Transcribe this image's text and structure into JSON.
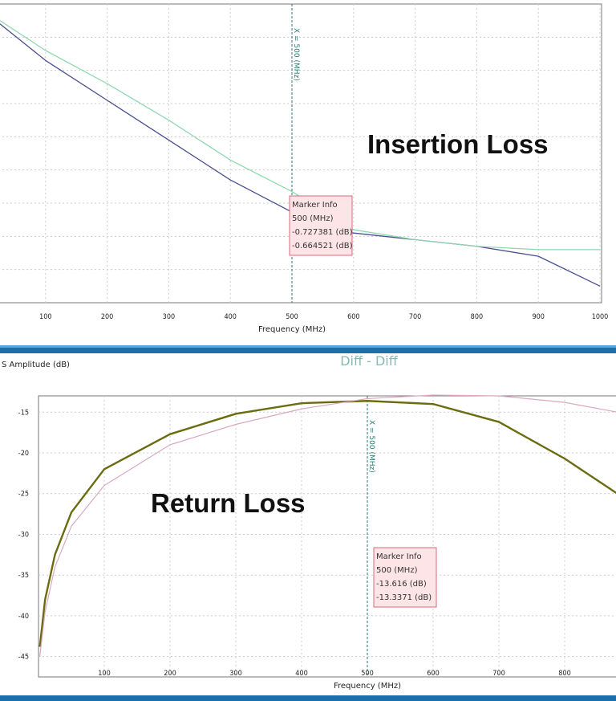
{
  "chart_data": [
    {
      "type": "line",
      "annotation": "Insertion Loss",
      "xlabel": "Frequency (MHz)",
      "xticks": [
        "100",
        "200",
        "300",
        "400",
        "500",
        "600",
        "700",
        "800",
        "900",
        "1000"
      ],
      "xlim": [
        26,
        1000
      ],
      "ylim": [
        -1.0,
        -0.1
      ],
      "grid": true,
      "marker": {
        "label": "X = 500 (MHz)",
        "x": 500,
        "info_title": "Marker Info",
        "info_lines": [
          "500 (MHz)",
          "-0.727381 (dB)",
          "-0.664521 (dB)"
        ]
      },
      "series": [
        {
          "color": "#4a4f8f",
          "x": [
            26,
            100,
            200,
            300,
            400,
            500,
            600,
            700,
            800,
            900,
            1000
          ],
          "y": [
            -0.16,
            -0.27,
            -0.39,
            -0.51,
            -0.63,
            -0.727,
            -0.79,
            -0.81,
            -0.83,
            -0.86,
            -0.95
          ]
        },
        {
          "color": "#8fd8b0",
          "x": [
            26,
            100,
            200,
            300,
            400,
            500,
            600,
            700,
            800,
            900,
            1000
          ],
          "y": [
            -0.15,
            -0.24,
            -0.34,
            -0.45,
            -0.57,
            -0.665,
            -0.78,
            -0.81,
            -0.83,
            -0.84,
            -0.84
          ]
        }
      ]
    },
    {
      "type": "line",
      "title": "Diff - Diff",
      "annotation": "Return Loss",
      "ylabel": "S Amplitude (dB)",
      "xlabel": "Frequency (MHz)",
      "xticks": [
        "100",
        "200",
        "300",
        "400",
        "500",
        "600",
        "700",
        "800"
      ],
      "yticks": [
        "-15",
        "-20",
        "-25",
        "-30",
        "-35",
        "-40",
        "-45"
      ],
      "xlim": [
        0,
        880
      ],
      "ylim": [
        -47.5,
        -13
      ],
      "grid": true,
      "marker": {
        "label": "X = 500 (MHz)",
        "x": 500,
        "info_title": "Marker Info",
        "info_lines": [
          "500 (MHz)",
          "-13.616 (dB)",
          "-13.3371 (dB)"
        ]
      },
      "series": [
        {
          "color": "#6b6b10",
          "x": [
            2,
            10,
            25,
            50,
            100,
            200,
            300,
            400,
            500,
            600,
            700,
            800,
            880
          ],
          "y": [
            -43.8,
            -38,
            -32.5,
            -27.3,
            -22,
            -17.7,
            -15.2,
            -13.9,
            -13.616,
            -14,
            -16.2,
            -20.7,
            -25
          ]
        },
        {
          "color": "#d9a8c0",
          "x": [
            2,
            10,
            25,
            50,
            100,
            200,
            300,
            400,
            500,
            600,
            700,
            800,
            880
          ],
          "y": [
            -45,
            -39.5,
            -34,
            -29,
            -24,
            -19,
            -16.5,
            -14.6,
            -13.337,
            -12.9,
            -13,
            -13.8,
            -15
          ]
        }
      ]
    }
  ]
}
